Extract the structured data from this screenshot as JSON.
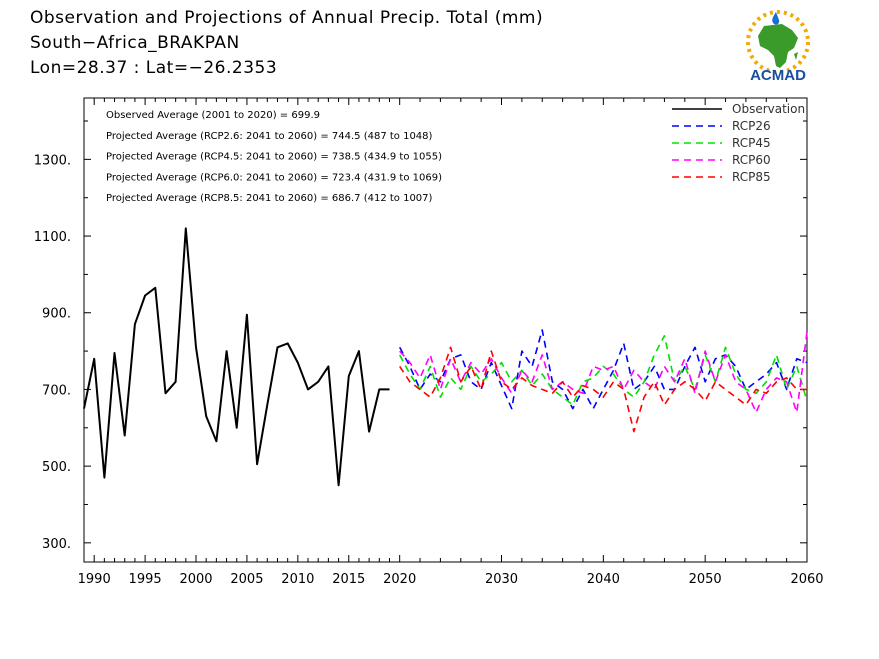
{
  "header": {
    "title": "Observation and Projections of Annual Precip. Total (mm)",
    "location": "South−Africa_BRAKPAN",
    "coords": "Lon=28.37 : Lat=−26.2353"
  },
  "logo": {
    "text": "ACMAD",
    "icon": "africa-map-icon",
    "colors": {
      "africa": "#3a9a2a",
      "text": "#1a4fa0",
      "sun": "#f2a900",
      "drop": "#1a6fd0"
    }
  },
  "chart_data": {
    "type": "line",
    "title": "Observation and Projections of Annual Precip. Total (mm)",
    "xlim": [
      1989,
      2060
    ],
    "ylim": [
      250,
      1460
    ],
    "x_ticks": [
      {
        "value": 1990,
        "label": "1990"
      },
      {
        "value": 1995,
        "label": "1995"
      },
      {
        "value": 2000,
        "label": "2000"
      },
      {
        "value": 2005,
        "label": "2005"
      },
      {
        "value": 2010,
        "label": "2010"
      },
      {
        "value": 2015,
        "label": "2015"
      },
      {
        "value": 2020,
        "label": "2020"
      },
      {
        "value": 2030,
        "label": "2030"
      },
      {
        "value": 2040,
        "label": "2040"
      },
      {
        "value": 2050,
        "label": "2050"
      },
      {
        "value": 2060,
        "label": "2060"
      }
    ],
    "y_ticks": [
      {
        "value": 300,
        "label": "300."
      },
      {
        "value": 500,
        "label": "500."
      },
      {
        "value": 700,
        "label": "700."
      },
      {
        "value": 900,
        "label": "900."
      },
      {
        "value": 1100,
        "label": "1100."
      },
      {
        "value": 1300,
        "label": "1300."
      }
    ],
    "annotations": [
      "Observed Average (2001 to 2020) = 699.9",
      "Projected Average (RCP2.6: 2041 to 2060) =  744.5 (487 to 1048)",
      "Projected Average (RCP4.5: 2041 to 2060) =  738.5 (434.9 to 1055)",
      "Projected Average (RCP6.0: 2041 to 2060) =  723.4 (431.9 to 1069)",
      "Projected Average (RCP8.5: 2041 to 2060) =  686.7 (412 to 1007)"
    ],
    "legend_position": "top-right",
    "series": [
      {
        "name": "Observation",
        "color": "#000000",
        "dashed": false,
        "x": [
          1989,
          1990,
          1991,
          1992,
          1993,
          1994,
          1995,
          1996,
          1997,
          1998,
          1999,
          2000,
          2001,
          2002,
          2003,
          2004,
          2005,
          2006,
          2007,
          2008,
          2009,
          2010,
          2011,
          2012,
          2013,
          2014,
          2015,
          2016,
          2017,
          2018,
          2019
        ],
        "y": [
          650,
          780,
          470,
          795,
          580,
          870,
          945,
          965,
          690,
          720,
          1120,
          810,
          630,
          565,
          800,
          600,
          895,
          505,
          660,
          810,
          820,
          770,
          700,
          720,
          760,
          450,
          735,
          800,
          590,
          700,
          700
        ]
      },
      {
        "name": "RCP26",
        "color": "#0000ff",
        "dashed": true,
        "x": [
          2020,
          2021,
          2022,
          2023,
          2024,
          2025,
          2026,
          2027,
          2028,
          2029,
          2030,
          2031,
          2032,
          2033,
          2034,
          2035,
          2036,
          2037,
          2038,
          2039,
          2040,
          2041,
          2042,
          2043,
          2044,
          2045,
          2046,
          2047,
          2048,
          2049,
          2050,
          2051,
          2052,
          2053,
          2054,
          2055,
          2056,
          2057,
          2058,
          2059,
          2060
        ],
        "y": [
          810,
          760,
          700,
          740,
          720,
          780,
          790,
          720,
          700,
          770,
          710,
          650,
          800,
          760,
          855,
          720,
          700,
          650,
          700,
          650,
          700,
          750,
          820,
          700,
          720,
          760,
          700,
          700,
          760,
          810,
          720,
          780,
          790,
          760,
          700,
          720,
          740,
          770,
          700,
          780,
          770
        ]
      },
      {
        "name": "RCP45",
        "color": "#00e000",
        "dashed": true,
        "x": [
          2020,
          2021,
          2022,
          2023,
          2024,
          2025,
          2026,
          2027,
          2028,
          2029,
          2030,
          2031,
          2032,
          2033,
          2034,
          2035,
          2036,
          2037,
          2038,
          2039,
          2040,
          2041,
          2042,
          2043,
          2044,
          2045,
          2046,
          2047,
          2048,
          2049,
          2050,
          2051,
          2052,
          2053,
          2054,
          2055,
          2056,
          2057,
          2058,
          2059,
          2060
        ],
        "y": [
          790,
          740,
          700,
          760,
          680,
          730,
          700,
          760,
          720,
          740,
          770,
          720,
          750,
          710,
          740,
          700,
          680,
          660,
          720,
          730,
          760,
          740,
          700,
          680,
          720,
          790,
          840,
          720,
          760,
          700,
          790,
          720,
          810,
          740,
          700,
          690,
          720,
          790,
          700,
          760,
          670
        ]
      },
      {
        "name": "RCP60",
        "color": "#ff00ff",
        "dashed": true,
        "x": [
          2020,
          2021,
          2022,
          2023,
          2024,
          2025,
          2026,
          2027,
          2028,
          2029,
          2030,
          2031,
          2032,
          2033,
          2034,
          2035,
          2036,
          2037,
          2038,
          2039,
          2040,
          2041,
          2042,
          2043,
          2044,
          2045,
          2046,
          2047,
          2048,
          2049,
          2050,
          2051,
          2052,
          2053,
          2054,
          2055,
          2056,
          2057,
          2058,
          2059,
          2060
        ],
        "y": [
          800,
          770,
          730,
          790,
          700,
          780,
          720,
          770,
          740,
          780,
          730,
          690,
          750,
          720,
          790,
          700,
          720,
          700,
          690,
          760,
          750,
          760,
          700,
          750,
          720,
          700,
          760,
          720,
          780,
          690,
          800,
          720,
          790,
          720,
          700,
          640,
          700,
          730,
          720,
          640,
          850
        ]
      },
      {
        "name": "RCP85",
        "color": "#ff0000",
        "dashed": true,
        "x": [
          2020,
          2021,
          2022,
          2023,
          2024,
          2025,
          2026,
          2027,
          2028,
          2029,
          2030,
          2031,
          2032,
          2033,
          2034,
          2035,
          2036,
          2037,
          2038,
          2039,
          2040,
          2041,
          2042,
          2043,
          2044,
          2045,
          2046,
          2047,
          2048,
          2049,
          2050,
          2051,
          2052,
          2053,
          2054,
          2055,
          2056,
          2057,
          2058,
          2059,
          2060
        ],
        "y": [
          760,
          720,
          700,
          680,
          730,
          810,
          720,
          760,
          700,
          800,
          720,
          700,
          730,
          710,
          700,
          690,
          720,
          680,
          710,
          700,
          680,
          720,
          700,
          590,
          680,
          720,
          660,
          700,
          720,
          700,
          670,
          720,
          700,
          680,
          660,
          700,
          690,
          720,
          730,
          700,
          700
        ]
      }
    ]
  }
}
